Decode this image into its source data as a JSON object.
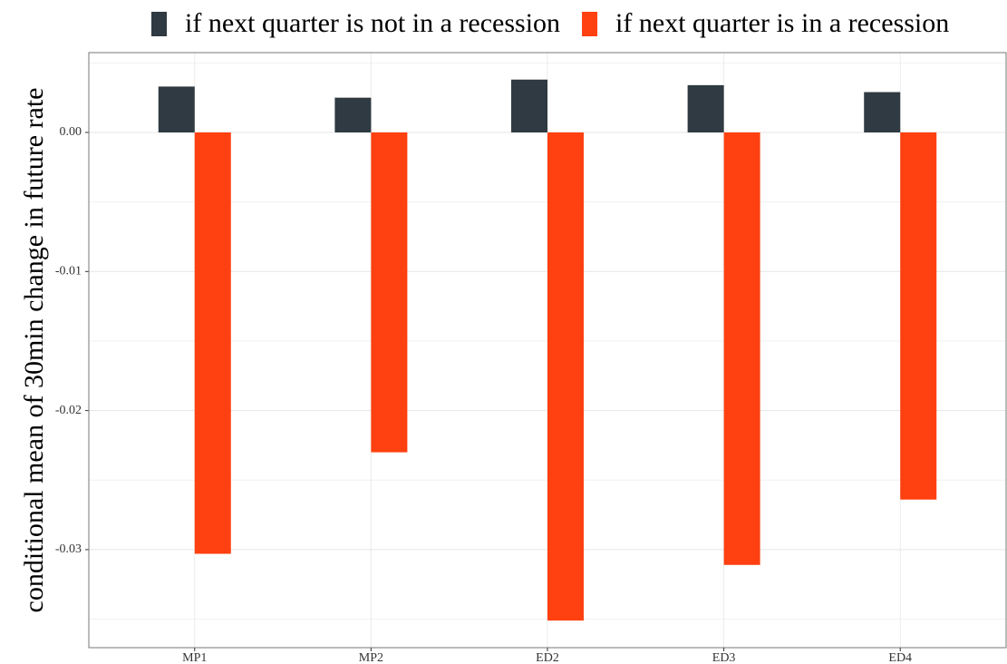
{
  "chart_data": {
    "type": "bar",
    "y_label": "conditional mean of 30min change in future rate",
    "categories": [
      "MP1",
      "MP2",
      "ED2",
      "ED3",
      "ED4"
    ],
    "series": [
      {
        "name": "if next quarter is not in a recession",
        "color": "#2f3a42",
        "values": [
          0.0033,
          0.0025,
          0.0038,
          0.0034,
          0.0029
        ]
      },
      {
        "name": "if next quarter is in a recession",
        "color": "#ff4010",
        "values": [
          -0.0303,
          -0.023,
          -0.0351,
          -0.0311,
          -0.0264
        ]
      }
    ],
    "ylim": [
      -0.03705,
      0.00574
    ],
    "yticks": [
      {
        "value": 0,
        "label": "0.00"
      },
      {
        "value": -0.01,
        "label": "-0.01"
      },
      {
        "value": -0.02,
        "label": "-0.02"
      },
      {
        "value": -0.03,
        "label": "-0.03"
      }
    ],
    "y_minor_ticks": [
      0.005,
      -0.005,
      -0.015,
      -0.025,
      -0.035
    ],
    "grid": true,
    "legend": "top"
  }
}
